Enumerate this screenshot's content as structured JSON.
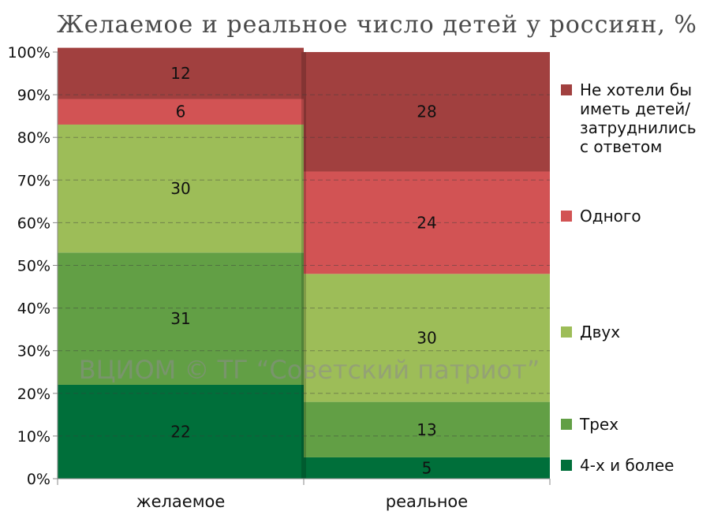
{
  "chart_data": {
    "type": "bar",
    "stacked": true,
    "title": "Желаемое и реальное число детей у россиян, %",
    "categories": [
      "желаемое",
      "реальное"
    ],
    "series": [
      {
        "name": "4-х и более",
        "color": "#006f3a",
        "values": [
          22,
          5
        ]
      },
      {
        "name": "Трех",
        "color": "#629f45",
        "values": [
          31,
          13
        ]
      },
      {
        "name": "Двух",
        "color": "#9dbd58",
        "values": [
          30,
          30
        ]
      },
      {
        "name": "Одного",
        "color": "#d25354",
        "values": [
          6,
          24
        ]
      },
      {
        "name": "Не хотели бы иметь детей/ затруднились с ответом",
        "color": "#a1403f",
        "values": [
          12,
          28
        ]
      }
    ],
    "ylim": [
      0,
      100
    ],
    "yticks": [
      "0%",
      "10%",
      "20%",
      "30%",
      "40%",
      "50%",
      "60%",
      "70%",
      "80%",
      "90%",
      "100%"
    ],
    "grid": "horizontal dashed",
    "legend_position": "right",
    "legend_labels": [
      [
        "Не хотели бы",
        "иметь детей/",
        "затруднились",
        "с ответом"
      ],
      [
        "Одного"
      ],
      [
        "Двух"
      ],
      [
        "Трех"
      ],
      [
        "4-х и более"
      ]
    ],
    "watermark": "ВЦИОМ © ТГ “Советский патриот”"
  }
}
